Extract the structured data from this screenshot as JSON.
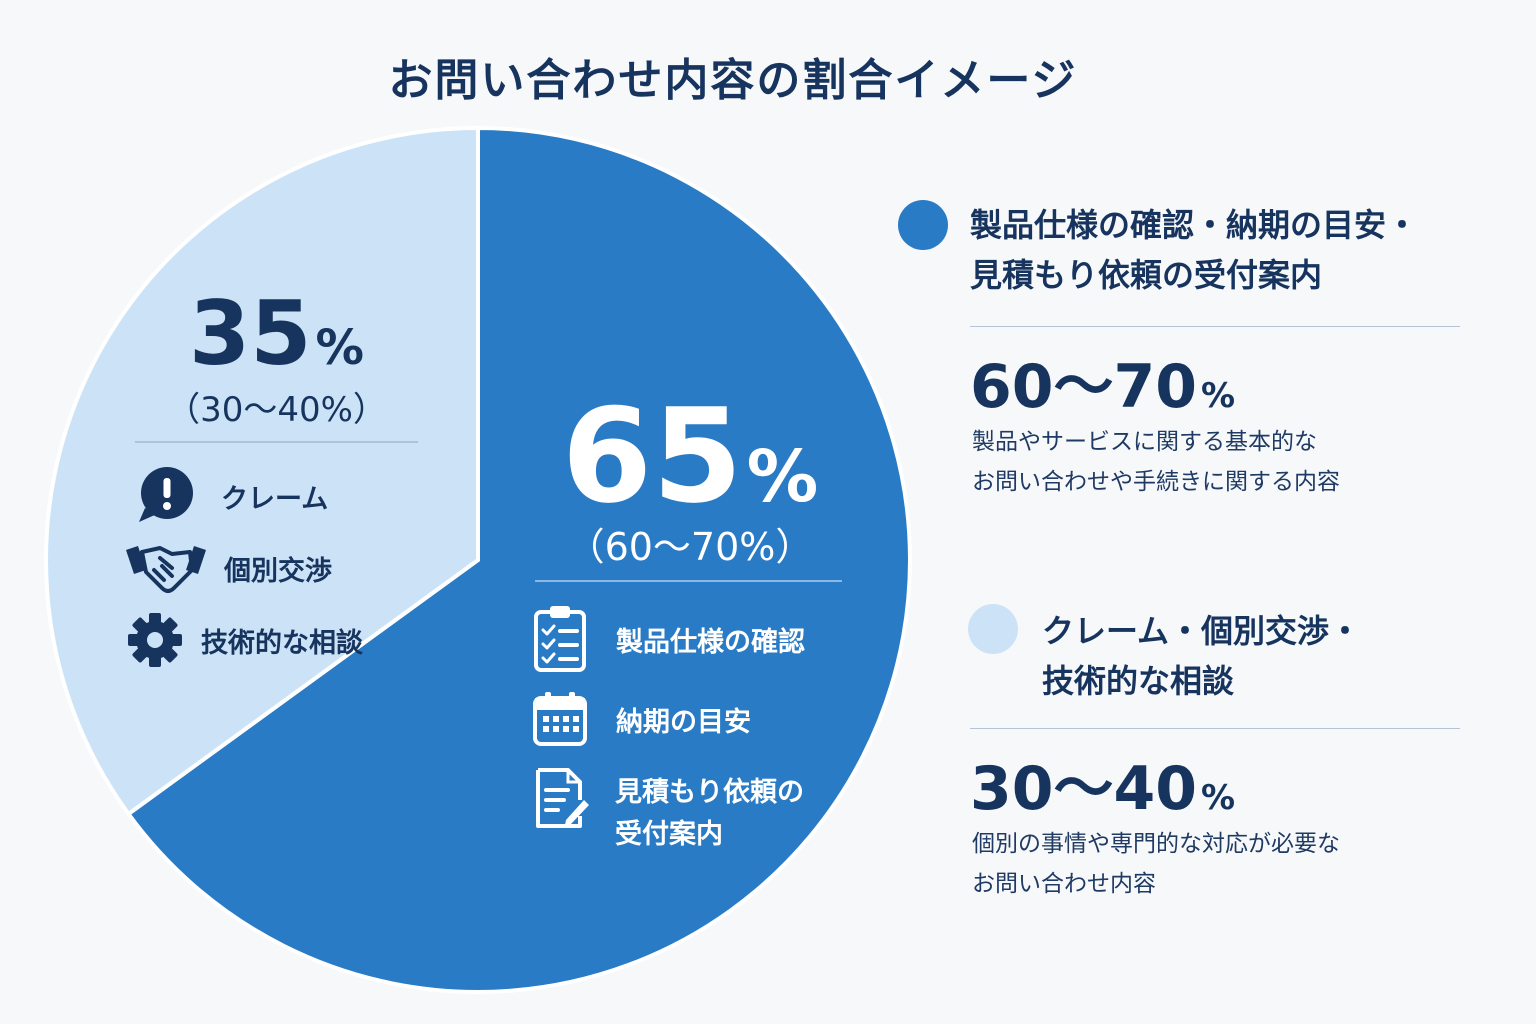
{
  "title": "お問い合わせ内容の割合イメージ",
  "chart_data": {
    "type": "pie",
    "title": "お問い合わせ内容の割合イメージ",
    "series": [
      {
        "name": "製品仕様の確認・納期の目安・見積もり依頼の受付案内",
        "value": 65,
        "range": [
          60,
          70
        ],
        "pct_label": "65",
        "range_label": "（60～70%）",
        "color": "#2a7bc6",
        "items": [
          "製品仕様の確認",
          "納期の目安",
          "見積もり依頼の受付案内"
        ]
      },
      {
        "name": "クレーム・個別交渉・技術的な相談",
        "value": 35,
        "range": [
          30,
          40
        ],
        "pct_label": "35",
        "range_label": "（30～40%）",
        "color": "#cce3f7",
        "items": [
          "クレーム",
          "個別交渉",
          "技術的な相談"
        ]
      }
    ]
  },
  "pie_labels": {
    "percent_symbol": "%",
    "main": {
      "items": [
        {
          "icon": "clipboard-checklist-icon",
          "label": "製品仕様の確認"
        },
        {
          "icon": "calendar-icon",
          "label": "納期の目安"
        },
        {
          "icon": "document-edit-icon",
          "label_line1": "見積もり依頼の",
          "label_line2": "受付案内"
        }
      ]
    },
    "minor": {
      "items": [
        {
          "icon": "exclamation-bubble-icon",
          "label": "クレーム"
        },
        {
          "icon": "handshake-icon",
          "label": "個別交渉"
        },
        {
          "icon": "gear-icon",
          "label": "技術的な相談"
        }
      ]
    }
  },
  "legend": [
    {
      "title_line1": "製品仕様の確認・納期の目安・",
      "title_line2": "見積もり依頼の受付案内",
      "range": "60～70",
      "range_symbol": "%",
      "desc_line1": "製品やサービスに関する基本的な",
      "desc_line2": "お問い合わせや手続きに関する内容",
      "color": "#2a7bc6"
    },
    {
      "title_line1": "クレーム・個別交渉・",
      "title_line2": "技術的な相談",
      "range": "30～40",
      "range_symbol": "%",
      "desc_line1": "個別の事情や専門的な対応が必要な",
      "desc_line2": "お問い合わせ内容",
      "color": "#cce3f7"
    }
  ]
}
